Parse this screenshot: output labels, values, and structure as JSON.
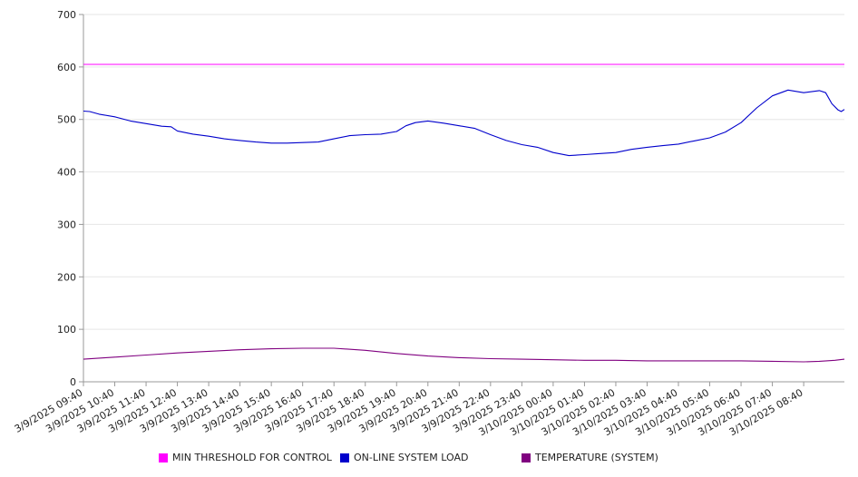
{
  "chart_data": {
    "type": "line",
    "title": "",
    "xlabel": "",
    "ylabel": "",
    "ylim": [
      0,
      700
    ],
    "yticks": [
      0,
      100,
      200,
      300,
      400,
      500,
      600,
      700
    ],
    "grid": true,
    "legend_position": "bottom",
    "x_range_hours": [
      0,
      24.3
    ],
    "x_tick_labels": [
      "3/9/2025 09:40",
      "3/9/2025 10:40",
      "3/9/2025 11:40",
      "3/9/2025 12:40",
      "3/9/2025 13:40",
      "3/9/2025 14:40",
      "3/9/2025 15:40",
      "3/9/2025 16:40",
      "3/9/2025 17:40",
      "3/9/2025 18:40",
      "3/9/2025 19:40",
      "3/9/2025 20:40",
      "3/9/2025 21:40",
      "3/9/2025 22:40",
      "3/9/2025 23:40",
      "3/10/2025 00:40",
      "3/10/2025 01:40",
      "3/10/2025 02:40",
      "3/10/2025 03:40",
      "3/10/2025 04:40",
      "3/10/2025 05:40",
      "3/10/2025 06:40",
      "3/10/2025 07:40",
      "3/10/2025 08:40"
    ],
    "series": [
      {
        "name": "MIN THRESHOLD FOR CONTROL",
        "color": "#ff00ff",
        "x": [
          0,
          24.3
        ],
        "y": [
          605,
          605
        ]
      },
      {
        "name": "ON-LINE SYSTEM LOAD",
        "color": "#0000cc",
        "x": [
          0,
          0.2,
          0.5,
          1,
          1.5,
          2,
          2.5,
          2.8,
          3,
          3.5,
          4,
          4.5,
          5,
          5.5,
          6,
          6.5,
          7,
          7.5,
          8,
          8.5,
          9,
          9.5,
          10,
          10.3,
          10.6,
          11,
          11.5,
          12,
          12.5,
          13,
          13.5,
          14,
          14.5,
          15,
          15.5,
          16,
          16.5,
          17,
          17.5,
          18,
          18.5,
          19,
          19.5,
          20,
          20.5,
          21,
          21.5,
          22,
          22.5,
          23,
          23.5,
          23.7,
          23.9,
          24.1,
          24.2,
          24.3
        ],
        "y": [
          516,
          515,
          510,
          505,
          497,
          492,
          487,
          486,
          478,
          472,
          468,
          463,
          460,
          457,
          455,
          455,
          456,
          457,
          463,
          469,
          471,
          472,
          477,
          488,
          494,
          497,
          493,
          488,
          483,
          471,
          460,
          452,
          447,
          437,
          431,
          433,
          435,
          437,
          443,
          447,
          450,
          453,
          459,
          465,
          476,
          494,
          522,
          545,
          556,
          551,
          555,
          551,
          530,
          518,
          515,
          519
        ]
      },
      {
        "name": "TEMPERATURE (SYSTEM)",
        "color": "#800080",
        "x": [
          0,
          1,
          2,
          3,
          4,
          5,
          6,
          7,
          8,
          9,
          10,
          11,
          12,
          13,
          14,
          15,
          16,
          17,
          18,
          19,
          20,
          21,
          22,
          23,
          23.5,
          24,
          24.3
        ],
        "y": [
          43,
          47,
          51,
          55,
          58,
          61,
          63,
          64,
          64,
          60,
          54,
          49,
          46,
          44,
          43,
          42,
          41,
          41,
          40,
          40,
          40,
          40,
          39,
          38,
          39,
          41,
          43
        ]
      }
    ]
  }
}
